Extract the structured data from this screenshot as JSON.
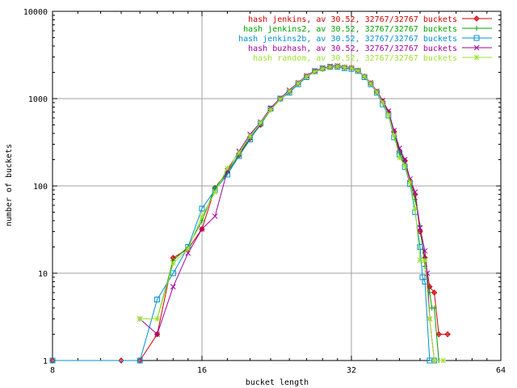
{
  "chart_data": {
    "type": "line",
    "title": "",
    "xlabel": "bucket length",
    "ylabel": "number of buckets",
    "x_scale": "log2",
    "y_scale": "log10",
    "xlim": [
      8,
      64
    ],
    "ylim": [
      1,
      10000
    ],
    "x_ticks": [
      8,
      16,
      32,
      64
    ],
    "x_tick_labels": [
      "8",
      "16",
      "32",
      "64"
    ],
    "y_ticks": [
      1,
      10,
      100,
      1000,
      10000
    ],
    "y_tick_labels": [
      "1",
      "10",
      "100",
      "1000",
      "10000"
    ],
    "grid": true,
    "legend_position": "top-right",
    "series": [
      {
        "name": "hash jenkins, av 30.52, 32767/32767 buckets",
        "color": "#d00000",
        "marker": "plus-diamond",
        "points": [
          [
            8,
            1
          ],
          [
            11,
            1
          ],
          [
            12,
            1
          ],
          [
            13,
            2
          ],
          [
            14,
            15
          ],
          [
            15,
            19
          ],
          [
            16,
            32
          ],
          [
            17,
            95
          ],
          [
            18,
            145
          ],
          [
            19,
            225
          ],
          [
            20,
            350
          ],
          [
            21,
            500
          ],
          [
            22,
            760
          ],
          [
            23,
            990
          ],
          [
            24,
            1200
          ],
          [
            25,
            1500
          ],
          [
            26,
            1800
          ],
          [
            27,
            2050
          ],
          [
            28,
            2200
          ],
          [
            29,
            2300
          ],
          [
            30,
            2350
          ],
          [
            31,
            2280
          ],
          [
            32,
            2250
          ],
          [
            33,
            2100
          ],
          [
            34,
            1800
          ],
          [
            35,
            1500
          ],
          [
            36,
            1200
          ],
          [
            37,
            930
          ],
          [
            38,
            700
          ],
          [
            39,
            420
          ],
          [
            40,
            250
          ],
          [
            41,
            195
          ],
          [
            42,
            115
          ],
          [
            43,
            80
          ],
          [
            44,
            30
          ],
          [
            45,
            15
          ],
          [
            46,
            7
          ],
          [
            47,
            6
          ],
          [
            48,
            2
          ],
          [
            50,
            2
          ]
        ]
      },
      {
        "name": "hash jenkins2, av 30.52, 32767/32767 buckets",
        "color": "#00a000",
        "marker": "plus",
        "points": [
          [
            12,
            3
          ],
          [
            13,
            3
          ],
          [
            14,
            14
          ],
          [
            15,
            20
          ],
          [
            16,
            40
          ],
          [
            17,
            95
          ],
          [
            18,
            140
          ],
          [
            19,
            230
          ],
          [
            20,
            360
          ],
          [
            21,
            510
          ],
          [
            22,
            740
          ],
          [
            23,
            980
          ],
          [
            24,
            1180
          ],
          [
            25,
            1480
          ],
          [
            26,
            1780
          ],
          [
            27,
            2020
          ],
          [
            28,
            2180
          ],
          [
            29,
            2280
          ],
          [
            30,
            2320
          ],
          [
            31,
            2260
          ],
          [
            32,
            2230
          ],
          [
            33,
            2080
          ],
          [
            34,
            1780
          ],
          [
            35,
            1480
          ],
          [
            36,
            1180
          ],
          [
            37,
            900
          ],
          [
            38,
            680
          ],
          [
            39,
            400
          ],
          [
            40,
            240
          ],
          [
            41,
            180
          ],
          [
            42,
            110
          ],
          [
            43,
            70
          ],
          [
            44,
            35
          ],
          [
            45,
            12
          ],
          [
            46,
            6
          ],
          [
            46.5,
            4
          ],
          [
            47,
            4
          ],
          [
            48,
            1
          ]
        ]
      },
      {
        "name": "hash jenkins2b, av 30.52, 32767/32767 buckets",
        "color": "#0090d0",
        "marker": "square",
        "points": [
          [
            8,
            1
          ],
          [
            12,
            1
          ],
          [
            13,
            5
          ],
          [
            14,
            10
          ],
          [
            15,
            20
          ],
          [
            16,
            55
          ],
          [
            17,
            90
          ],
          [
            18,
            135
          ],
          [
            19,
            220
          ],
          [
            20,
            340
          ],
          [
            21,
            520
          ],
          [
            22,
            770
          ],
          [
            23,
            1000
          ],
          [
            24,
            1170
          ],
          [
            25,
            1460
          ],
          [
            26,
            1760
          ],
          [
            27,
            2060
          ],
          [
            28,
            2220
          ],
          [
            29,
            2310
          ],
          [
            30,
            2310
          ],
          [
            31,
            2230
          ],
          [
            32,
            2190
          ],
          [
            33,
            2070
          ],
          [
            34,
            1760
          ],
          [
            35,
            1460
          ],
          [
            36,
            1170
          ],
          [
            37,
            860
          ],
          [
            38,
            640
          ],
          [
            39,
            360
          ],
          [
            40,
            230
          ],
          [
            41,
            165
          ],
          [
            42,
            105
          ],
          [
            43,
            50
          ],
          [
            44,
            20
          ],
          [
            44.5,
            9
          ],
          [
            45,
            8
          ],
          [
            46,
            1
          ],
          [
            47,
            1
          ]
        ]
      },
      {
        "name": "hash buzhash, av 30.52, 32767/32767 buckets",
        "color": "#a000a0",
        "marker": "cross",
        "points": [
          [
            12,
            3
          ],
          [
            13,
            2
          ],
          [
            14,
            7
          ],
          [
            15,
            17
          ],
          [
            16,
            32
          ],
          [
            17,
            45
          ],
          [
            18,
            150
          ],
          [
            19,
            250
          ],
          [
            20,
            390
          ],
          [
            21,
            540
          ],
          [
            22,
            780
          ],
          [
            23,
            1010
          ],
          [
            24,
            1250
          ],
          [
            25,
            1530
          ],
          [
            26,
            1830
          ],
          [
            27,
            2080
          ],
          [
            28,
            2230
          ],
          [
            29,
            2340
          ],
          [
            30,
            2380
          ],
          [
            31,
            2300
          ],
          [
            32,
            2260
          ],
          [
            33,
            2110
          ],
          [
            34,
            1800
          ],
          [
            35,
            1520
          ],
          [
            36,
            1220
          ],
          [
            37,
            950
          ],
          [
            38,
            720
          ],
          [
            39,
            430
          ],
          [
            40,
            270
          ],
          [
            41,
            200
          ],
          [
            42,
            120
          ],
          [
            43,
            85
          ],
          [
            44,
            33
          ],
          [
            45,
            18
          ],
          [
            45.5,
            10
          ],
          [
            46,
            3
          ],
          [
            47,
            1
          ]
        ]
      },
      {
        "name": "hash random, av 30.52, 32767/32767 buckets",
        "color": "#a0e030",
        "marker": "star",
        "points": [
          [
            12,
            3
          ],
          [
            13,
            3
          ],
          [
            14,
            13
          ],
          [
            15,
            19
          ],
          [
            16,
            45
          ],
          [
            17,
            85
          ],
          [
            18,
            160
          ],
          [
            19,
            240
          ],
          [
            20,
            370
          ],
          [
            21,
            530
          ],
          [
            22,
            750
          ],
          [
            23,
            990
          ],
          [
            24,
            1220
          ],
          [
            25,
            1500
          ],
          [
            26,
            1790
          ],
          [
            27,
            2040
          ],
          [
            28,
            2200
          ],
          [
            29,
            2300
          ],
          [
            30,
            2340
          ],
          [
            31,
            2280
          ],
          [
            32,
            2240
          ],
          [
            33,
            2090
          ],
          [
            34,
            1790
          ],
          [
            35,
            1490
          ],
          [
            36,
            1190
          ],
          [
            37,
            900
          ],
          [
            38,
            650
          ],
          [
            39,
            380
          ],
          [
            40,
            210
          ],
          [
            41,
            170
          ],
          [
            42,
            110
          ],
          [
            43,
            55
          ],
          [
            44,
            14
          ],
          [
            45,
            14
          ],
          [
            46,
            3
          ],
          [
            47,
            1
          ],
          [
            49,
            1
          ]
        ]
      }
    ]
  }
}
